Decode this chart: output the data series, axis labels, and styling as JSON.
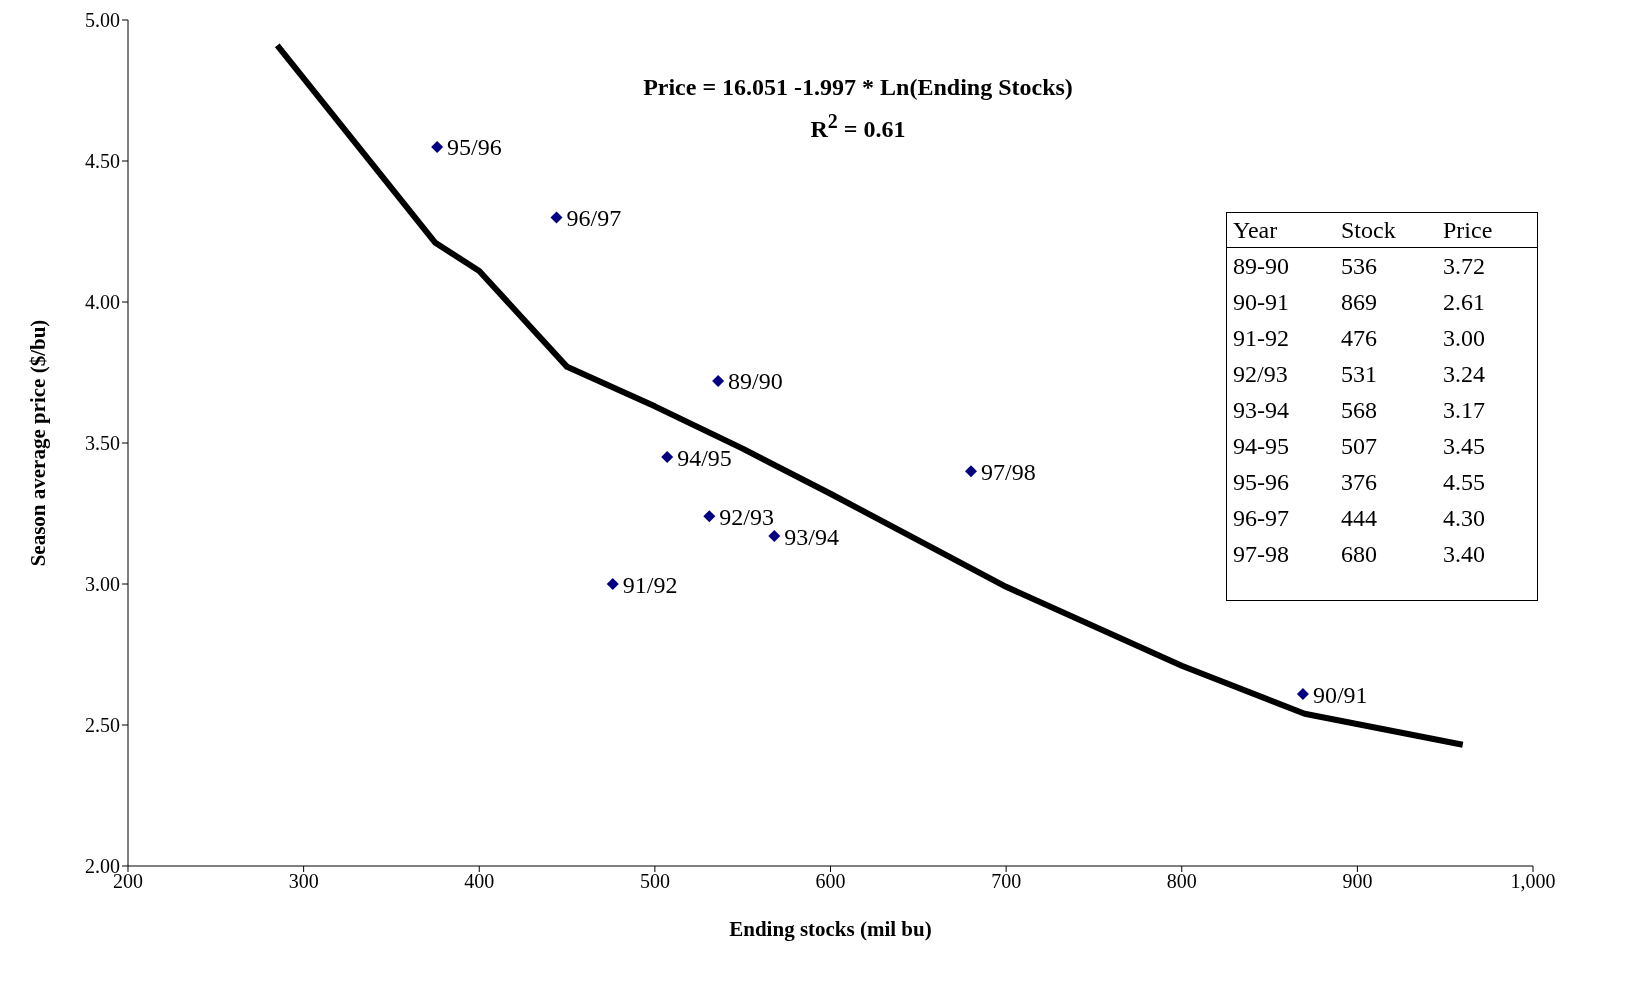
{
  "chart_data": [
    {
      "type": "scatter",
      "title": "Price = 16.051 -1.997 * Ln(Ending Stocks)",
      "subtitle": "R$^{2}$ = 0.61",
      "xlabel": "Ending stocks (mil bu)",
      "ylabel": "Season average price ($/bu)",
      "xlim": [
        200,
        1000
      ],
      "xticks": [
        200,
        300,
        400,
        500,
        600,
        700,
        800,
        900,
        {
          "value": 1000,
          "label": "1,000"
        }
      ],
      "ylim": [
        2,
        5
      ],
      "yticks": [
        {
          "value": 2,
          "label": "2.00"
        },
        {
          "value": 2.5,
          "label": "2.50"
        },
        {
          "value": 3,
          "label": "3.00"
        },
        {
          "value": 3.5,
          "label": "3.50"
        },
        {
          "value": 4,
          "label": "4.00"
        },
        {
          "value": 4.5,
          "label": "4.50"
        },
        {
          "value": 5,
          "label": "5.00"
        }
      ],
      "grid": false,
      "legend": false,
      "series": [
        {
          "color": "#000080",
          "marker": "diamond",
          "x": [
            536,
            869,
            476,
            531,
            568,
            507,
            376,
            444,
            680
          ],
          "values": [
            3.72,
            2.61,
            3.0,
            3.24,
            3.17,
            3.45,
            4.55,
            4.3,
            3.4
          ]
        },
        {
          "type": "line",
          "color": "#000000",
          "x": [
            285,
            375,
            400,
            450,
            500,
            550,
            600,
            700,
            800,
            870,
            960
          ],
          "values": [
            4.91,
            4.21,
            4.11,
            3.77,
            3.63,
            3.48,
            3.32,
            2.99,
            2.71,
            2.54,
            2.43
          ]
        }
      ],
      "annotations": [
        {
          "text": "89/90",
          "x": 536,
          "y": 3.72
        },
        {
          "text": "90/91",
          "x": 869,
          "y": 2.61
        },
        {
          "text": "91/92",
          "x": 476,
          "y": 3.0
        },
        {
          "text": "92/93",
          "x": 531,
          "y": 3.24
        },
        {
          "text": "93/94",
          "x": 568,
          "y": 3.17
        },
        {
          "text": "94/95",
          "x": 507,
          "y": 3.45
        },
        {
          "text": "95/96",
          "x": 376,
          "y": 4.55
        },
        {
          "text": "96/97",
          "x": 444,
          "y": 4.3
        },
        {
          "text": "97/98",
          "x": 680,
          "y": 3.4
        }
      ]
    },
    {
      "type": "other",
      "annotations": [
        "Year",
        "Stock",
        "Price",
        "89-90",
        "536",
        "3.72",
        "90-91",
        "869",
        "2.61",
        "91-92",
        "476",
        "3.00",
        "92/93",
        "531",
        "3.24",
        "93-94",
        "568",
        "3.17",
        "94-95",
        "507",
        "3.45",
        "95-96",
        "376",
        "4.55",
        "96-97",
        "444",
        "4.30",
        "97-98",
        "680",
        "3.40"
      ]
    }
  ]
}
